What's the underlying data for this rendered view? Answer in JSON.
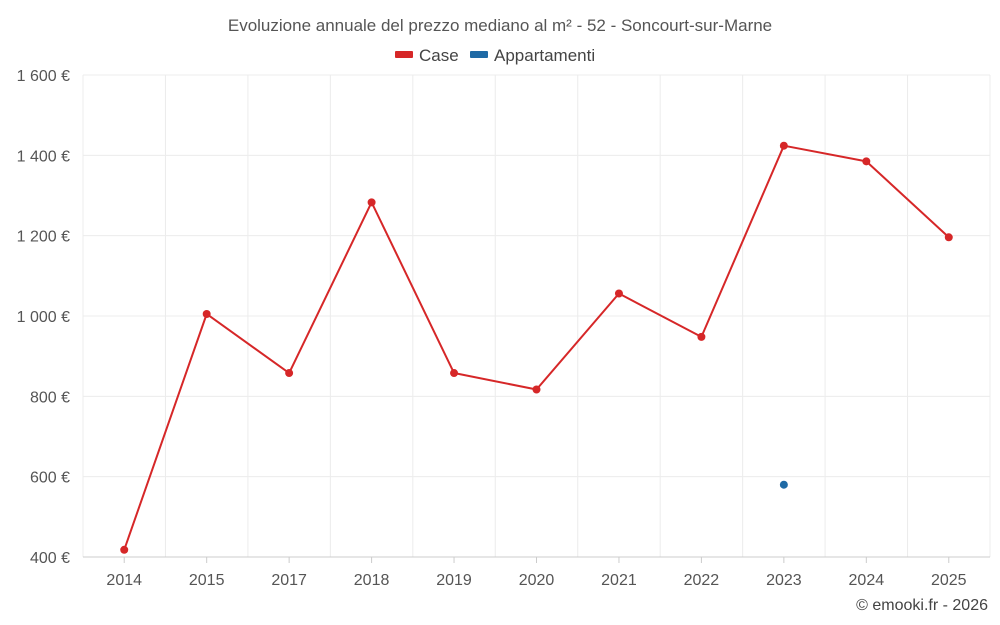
{
  "chart_data": {
    "type": "line",
    "title": "Evoluzione annuale del prezzo mediano al m² - 52 - Soncourt-sur-Marne",
    "categories": [
      "2014",
      "2015",
      "2017",
      "2018",
      "2019",
      "2020",
      "2021",
      "2022",
      "2023",
      "2024",
      "2025"
    ],
    "series": [
      {
        "name": "Case",
        "color": "#d62728",
        "values": [
          418,
          1005,
          858,
          1283,
          858,
          817,
          1056,
          948,
          1424,
          1385,
          1196
        ]
      },
      {
        "name": "Appartamenti",
        "color": "#1f6aa5",
        "values": [
          null,
          null,
          null,
          null,
          null,
          null,
          null,
          null,
          580,
          null,
          null
        ]
      }
    ],
    "ylim": [
      400,
      1600
    ],
    "yticks": [
      400,
      600,
      800,
      1000,
      1200,
      1400,
      1600
    ],
    "ytick_labels": [
      "400 €",
      "600 €",
      "800 €",
      "1 000 €",
      "1 200 €",
      "1 400 €",
      "1 600 €"
    ],
    "xlabel": "",
    "ylabel": "",
    "grid": true,
    "legend_position": "top-center"
  },
  "credit": "© emooki.fr - 2026"
}
